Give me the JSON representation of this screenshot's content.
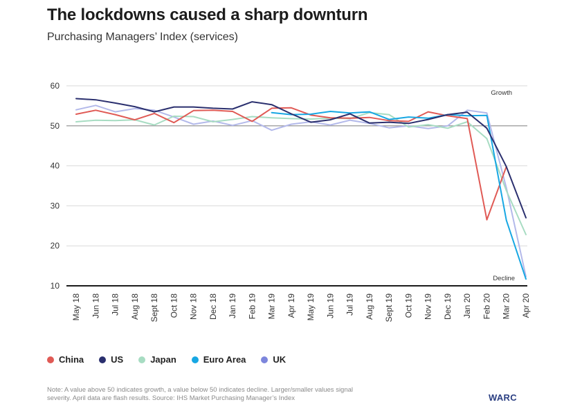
{
  "header": {
    "title": "The lockdowns caused a sharp downturn",
    "subtitle": "Purchasing Managers’ Index (services)"
  },
  "chart_data": {
    "type": "line",
    "title": "The lockdowns caused a sharp downturn",
    "subtitle": "Purchasing Managers’ Index (services)",
    "xlabel": "",
    "ylabel": "",
    "ylim": [
      10,
      60
    ],
    "yticks": [
      10,
      20,
      30,
      40,
      50,
      60
    ],
    "grid": true,
    "legend_position": "bottom-left",
    "annotations": {
      "growth": "Growth",
      "decline": "Decline"
    },
    "categories": [
      "May 18",
      "Jun 18",
      "Jul 18",
      "Aug 18",
      "Sept 18",
      "Oct 18",
      "Nov 18",
      "Dec 18",
      "Jan 19",
      "Feb 19",
      "Mar 19",
      "Apr 19",
      "May 19",
      "Jun 19",
      "Jul 19",
      "Aug 19",
      "Sept 19",
      "Oct 19",
      "Nov 19",
      "Dec 19",
      "Jan 20",
      "Feb 20",
      "Mar 20",
      "Apr 20"
    ],
    "series": [
      {
        "name": "China",
        "color": "#e05a55",
        "values": [
          52.9,
          53.9,
          52.8,
          51.5,
          53.1,
          50.8,
          53.8,
          53.9,
          53.6,
          51.1,
          54.4,
          54.5,
          52.7,
          52.0,
          51.9,
          52.1,
          51.3,
          51.1,
          53.5,
          52.5,
          51.8,
          26.5,
          39.8,
          null
        ]
      },
      {
        "name": "US",
        "color": "#2a2f6e",
        "values": [
          56.8,
          56.5,
          55.7,
          54.8,
          53.5,
          54.7,
          54.7,
          54.4,
          54.2,
          56.0,
          55.3,
          53.0,
          50.9,
          51.5,
          53.0,
          50.7,
          50.9,
          50.6,
          51.6,
          52.8,
          53.4,
          49.4,
          39.8,
          27.0
        ]
      },
      {
        "name": "Japan",
        "color": "#a7dcc2",
        "values": [
          51.0,
          51.4,
          51.3,
          51.5,
          50.2,
          52.4,
          52.3,
          51.0,
          51.6,
          52.3,
          52.0,
          51.8,
          51.7,
          51.9,
          51.8,
          53.3,
          52.8,
          49.7,
          50.3,
          49.4,
          51.0,
          46.8,
          33.8,
          22.8
        ]
      },
      {
        "name": "Euro Area",
        "color": "#17a7e3",
        "values": [
          null,
          null,
          null,
          null,
          null,
          null,
          null,
          null,
          null,
          null,
          53.3,
          52.8,
          52.9,
          53.6,
          53.2,
          53.5,
          51.6,
          52.2,
          51.9,
          52.8,
          52.5,
          52.6,
          26.4,
          11.7
        ]
      },
      {
        "name": "UK",
        "color": "#b3b9ea",
        "values": [
          54.0,
          55.1,
          53.5,
          54.3,
          53.9,
          52.2,
          50.4,
          51.2,
          50.1,
          51.3,
          48.9,
          50.4,
          51.0,
          50.2,
          51.4,
          50.6,
          49.5,
          50.0,
          49.3,
          50.0,
          53.9,
          53.2,
          34.5,
          12.3
        ]
      }
    ]
  },
  "legend": {
    "items": [
      {
        "label": "China",
        "color": "#e05a55"
      },
      {
        "label": "US",
        "color": "#2a2f6e"
      },
      {
        "label": "Japan",
        "color": "#a7dcc2"
      },
      {
        "label": "Euro Area",
        "color": "#17a7e3"
      },
      {
        "label": "UK",
        "color": "#7d86dc"
      }
    ]
  },
  "footer": {
    "note": "Note: A value above 50 indicates growth, a value below 50 indicates decline. Larger/smaller values signal severity. April data are flash results. Source: IHS Market Purchasing Manager’s Index",
    "logo": "WARC"
  }
}
